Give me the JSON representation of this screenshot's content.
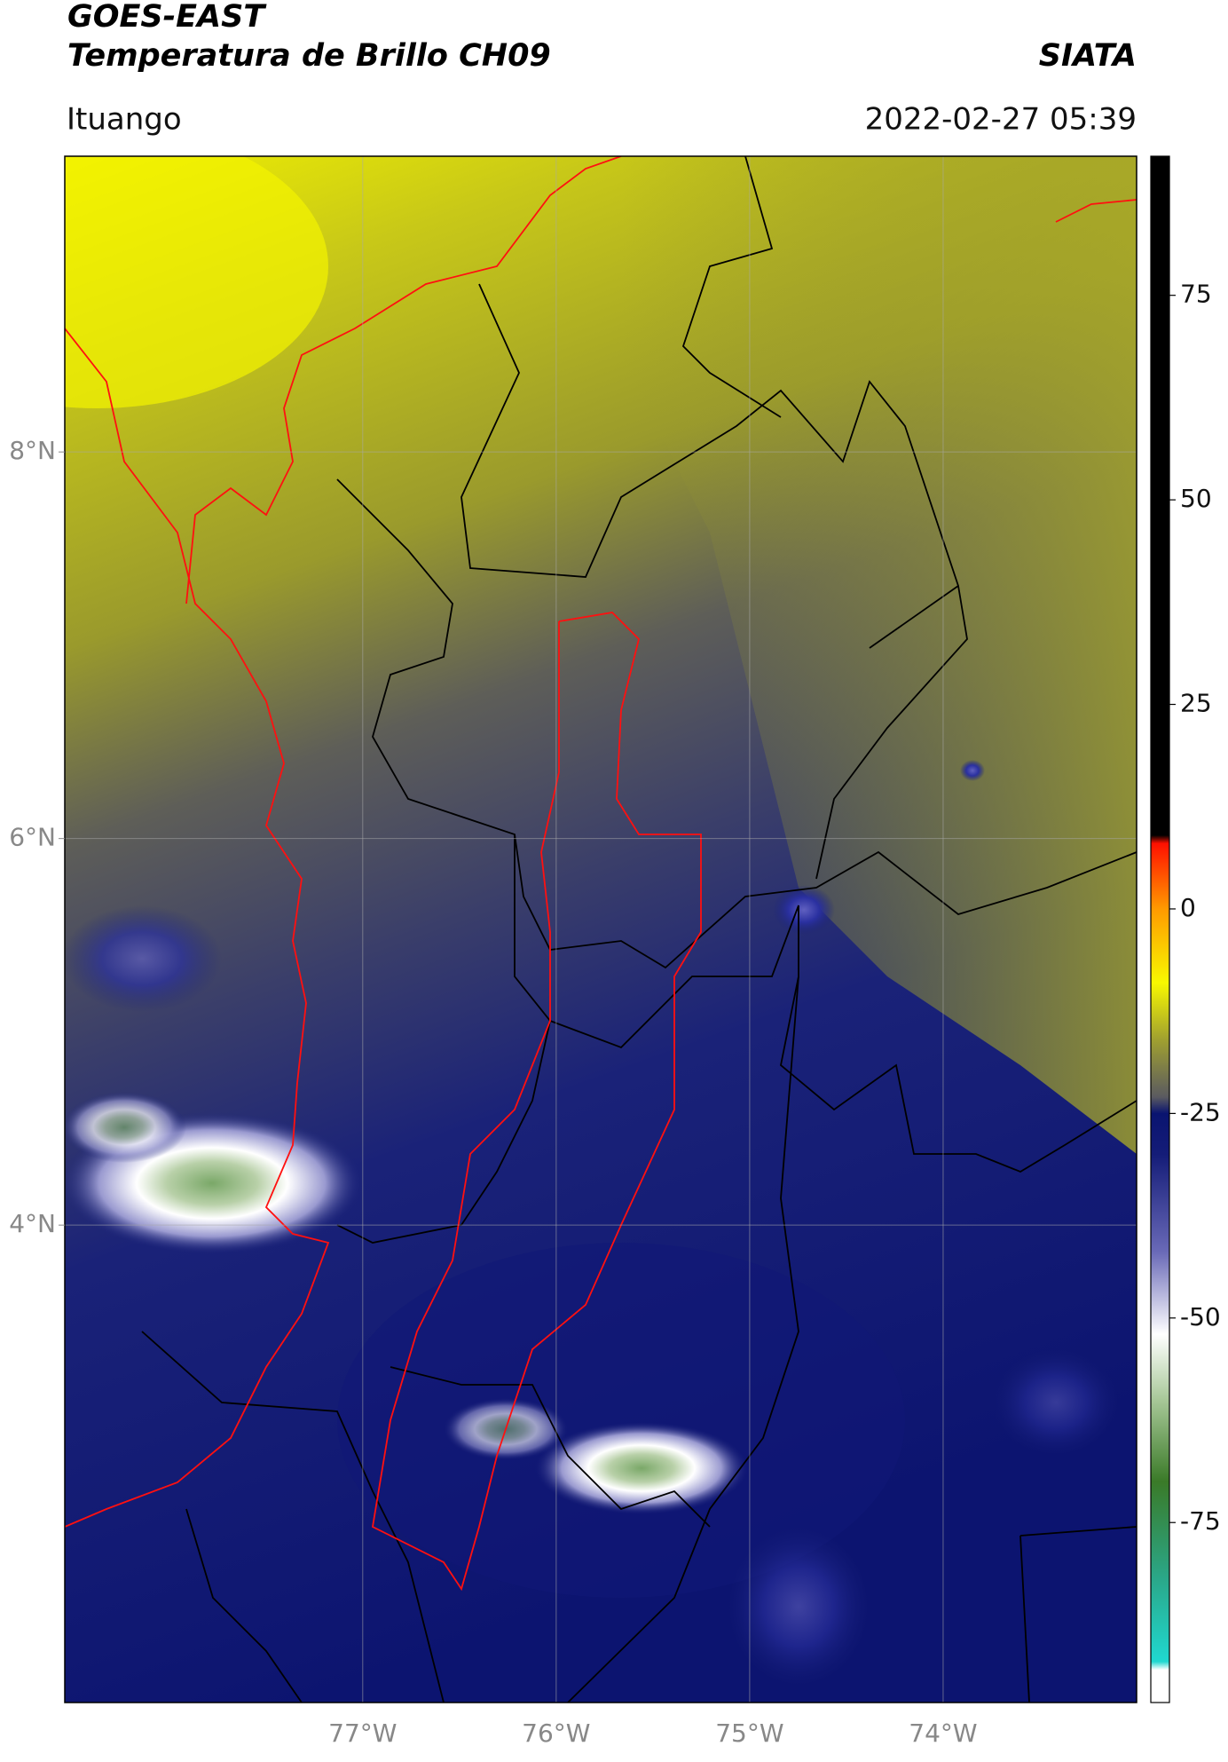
{
  "chart_data": {
    "type": "map",
    "title": "GOES-EAST",
    "subtitle": "Temperatura de Brillo CH09",
    "source": "SIATA",
    "region": "Ituango",
    "timestamp": "2022-02-27 05:39",
    "xlim": [
      -78.54,
      -73.0
    ],
    "ylim": [
      1.53,
      9.53
    ],
    "xticks": [
      {
        "value": -77,
        "label": "77°W"
      },
      {
        "value": -76,
        "label": "76°W"
      },
      {
        "value": -75,
        "label": "75°W"
      },
      {
        "value": -74,
        "label": "74°W"
      }
    ],
    "yticks": [
      {
        "value": 8,
        "label": "8°N"
      },
      {
        "value": 6,
        "label": "6°N"
      },
      {
        "value": 4,
        "label": "4°N"
      }
    ],
    "grid": true,
    "colorbar": {
      "lim": [
        -97,
        92
      ],
      "ticks": [
        75,
        50,
        25,
        0,
        -25,
        -50,
        -75
      ],
      "stops": [
        {
          "value": -97,
          "color": "#ffffff"
        },
        {
          "value": -93,
          "color": "#ffffff"
        },
        {
          "value": -92,
          "color": "#20d8d0"
        },
        {
          "value": -82,
          "color": "#2aa88a"
        },
        {
          "value": -70,
          "color": "#3a7a28"
        },
        {
          "value": -60,
          "color": "#a8c898"
        },
        {
          "value": -52,
          "color": "#ffffff"
        },
        {
          "value": -42,
          "color": "#6a6ab8"
        },
        {
          "value": -30,
          "color": "#141c78"
        },
        {
          "value": -25,
          "color": "#0a1470"
        },
        {
          "value": -23,
          "color": "#5a5a60"
        },
        {
          "value": -16,
          "color": "#a0a030"
        },
        {
          "value": -9,
          "color": "#f8f800"
        },
        {
          "value": 0,
          "color": "#ff9a00"
        },
        {
          "value": 8,
          "color": "#ff1000"
        },
        {
          "value": 9,
          "color": "#000000"
        },
        {
          "value": 92,
          "color": "#000000"
        }
      ]
    }
  }
}
